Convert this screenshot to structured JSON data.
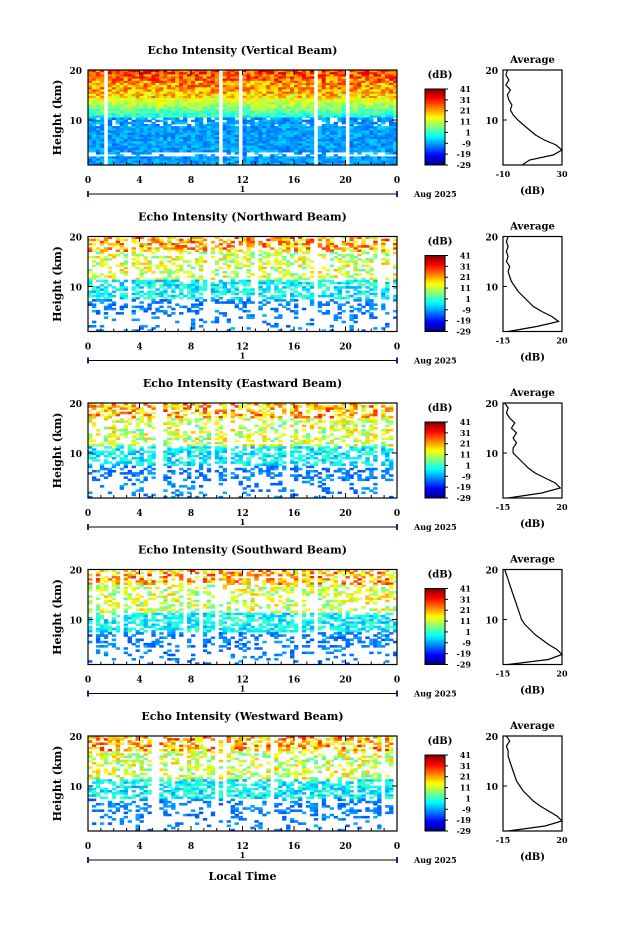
{
  "figure": {
    "xlabel": "Local Time",
    "date_label": "Aug 2025",
    "day_marker": "1",
    "colorbar_unit": "(dB)",
    "colorbar_ticks": [
      "41",
      "31",
      "21",
      "11",
      "1",
      "-9",
      "-19",
      "-29"
    ],
    "colorbar_range": [
      -29,
      41
    ]
  },
  "chart_data": [
    {
      "type": "heatmap",
      "title": "Echo Intensity (Vertical Beam)",
      "ylabel": "Height (km)",
      "x_ticks": [
        "0",
        "4",
        "8",
        "12",
        "16",
        "20",
        "0"
      ],
      "xlim": [
        0,
        24
      ],
      "ylim": [
        1,
        20
      ],
      "y_ticks": [
        "20",
        "10"
      ],
      "colorbar_unit": "(dB)",
      "profile": {
        "title": "Average",
        "xlabel": "(dB)",
        "x_ticks": [
          "-10",
          "30"
        ],
        "xlim": [
          -10,
          30
        ],
        "y_ticks": [
          "20",
          "10"
        ],
        "points": [
          [
            3,
            1
          ],
          [
            8,
            2
          ],
          [
            24,
            3
          ],
          [
            30,
            4
          ],
          [
            26,
            5
          ],
          [
            18,
            6
          ],
          [
            12,
            7
          ],
          [
            8,
            8
          ],
          [
            4,
            9
          ],
          [
            0,
            10
          ],
          [
            -3,
            11
          ],
          [
            -5,
            12
          ],
          [
            -4,
            13
          ],
          [
            -6,
            14
          ],
          [
            -7,
            15
          ],
          [
            -5,
            16
          ],
          [
            -8,
            17
          ],
          [
            -6,
            18
          ],
          [
            -8,
            19
          ],
          [
            -7,
            20
          ]
        ]
      }
    },
    {
      "type": "heatmap",
      "title": "Echo Intensity (Northward Beam)",
      "ylabel": "Height (km)",
      "x_ticks": [
        "0",
        "4",
        "8",
        "12",
        "16",
        "20",
        "0"
      ],
      "xlim": [
        0,
        24
      ],
      "ylim": [
        1,
        20
      ],
      "y_ticks": [
        "20",
        "10"
      ],
      "colorbar_unit": "(dB)",
      "profile": {
        "title": "Average",
        "xlabel": "(dB)",
        "x_ticks": [
          "-15",
          "20"
        ],
        "xlim": [
          -15,
          20
        ],
        "y_ticks": [
          "20",
          "10"
        ],
        "points": [
          [
            -12,
            1
          ],
          [
            5,
            2
          ],
          [
            18,
            3
          ],
          [
            14,
            4
          ],
          [
            8,
            5
          ],
          [
            3,
            6
          ],
          [
            0,
            7
          ],
          [
            -3,
            8
          ],
          [
            -6,
            9
          ],
          [
            -8,
            10
          ],
          [
            -10,
            11
          ],
          [
            -11,
            12
          ],
          [
            -12,
            13
          ],
          [
            -11,
            14
          ],
          [
            -13,
            15
          ],
          [
            -12,
            16
          ],
          [
            -13,
            17
          ],
          [
            -12,
            18
          ],
          [
            -13,
            19
          ],
          [
            -12,
            20
          ]
        ]
      }
    },
    {
      "type": "heatmap",
      "title": "Echo Intensity (Eastward Beam)",
      "ylabel": "Height (km)",
      "x_ticks": [
        "0",
        "4",
        "8",
        "12",
        "16",
        "20",
        "0"
      ],
      "xlim": [
        0,
        24
      ],
      "ylim": [
        1,
        20
      ],
      "y_ticks": [
        "20",
        "10"
      ],
      "colorbar_unit": "(dB)",
      "profile": {
        "title": "Average",
        "xlabel": "(dB)",
        "x_ticks": [
          "-15",
          "20"
        ],
        "xlim": [
          -15,
          20
        ],
        "y_ticks": [
          "20",
          "10"
        ],
        "points": [
          [
            -12,
            1
          ],
          [
            8,
            2
          ],
          [
            19,
            3
          ],
          [
            16,
            4
          ],
          [
            10,
            5
          ],
          [
            4,
            6
          ],
          [
            0,
            7
          ],
          [
            -3,
            8
          ],
          [
            -6,
            9
          ],
          [
            -9,
            10
          ],
          [
            -9,
            11
          ],
          [
            -7,
            12
          ],
          [
            -9,
            13
          ],
          [
            -7,
            14
          ],
          [
            -10,
            15
          ],
          [
            -8,
            16
          ],
          [
            -11,
            17
          ],
          [
            -13,
            18
          ],
          [
            -12,
            19
          ],
          [
            -14,
            20
          ]
        ]
      }
    },
    {
      "type": "heatmap",
      "title": "Echo Intensity (Southward Beam)",
      "ylabel": "Height (km)",
      "x_ticks": [
        "0",
        "4",
        "8",
        "12",
        "16",
        "20",
        "0"
      ],
      "xlim": [
        0,
        24
      ],
      "ylim": [
        1,
        20
      ],
      "y_ticks": [
        "20",
        "10"
      ],
      "colorbar_unit": "(dB)",
      "profile": {
        "title": "Average",
        "xlabel": "(dB)",
        "x_ticks": [
          "-15",
          "20"
        ],
        "xlim": [
          -15,
          20
        ],
        "y_ticks": [
          "20",
          "10"
        ],
        "points": [
          [
            -12,
            1
          ],
          [
            12,
            2
          ],
          [
            20,
            3
          ],
          [
            17,
            4
          ],
          [
            12,
            5
          ],
          [
            8,
            6
          ],
          [
            4,
            7
          ],
          [
            1,
            8
          ],
          [
            -2,
            9
          ],
          [
            -4,
            10
          ],
          [
            -5,
            11
          ],
          [
            -6,
            12
          ],
          [
            -7,
            13
          ],
          [
            -8,
            14
          ],
          [
            -9,
            15
          ],
          [
            -10,
            16
          ],
          [
            -11,
            17
          ],
          [
            -12,
            18
          ],
          [
            -13,
            19
          ],
          [
            -14,
            20
          ]
        ]
      }
    },
    {
      "type": "heatmap",
      "title": "Echo Intensity (Westward Beam)",
      "ylabel": "Height (km)",
      "x_ticks": [
        "0",
        "4",
        "8",
        "12",
        "16",
        "20",
        "0"
      ],
      "xlim": [
        0,
        24
      ],
      "ylim": [
        1,
        20
      ],
      "y_ticks": [
        "20",
        "10"
      ],
      "colorbar_unit": "(dB)",
      "profile": {
        "title": "Average",
        "xlabel": "(dB)",
        "x_ticks": [
          "-15",
          "20"
        ],
        "xlim": [
          -15,
          20
        ],
        "y_ticks": [
          "20",
          "10"
        ],
        "points": [
          [
            -12,
            1
          ],
          [
            10,
            2
          ],
          [
            20,
            3
          ],
          [
            17,
            4
          ],
          [
            12,
            5
          ],
          [
            7,
            6
          ],
          [
            3,
            7
          ],
          [
            0,
            8
          ],
          [
            -3,
            9
          ],
          [
            -5,
            10
          ],
          [
            -7,
            11
          ],
          [
            -8,
            12
          ],
          [
            -9,
            13
          ],
          [
            -10,
            14
          ],
          [
            -11,
            15
          ],
          [
            -12,
            16
          ],
          [
            -12,
            17
          ],
          [
            -13,
            18
          ],
          [
            -11,
            19
          ],
          [
            -13,
            20
          ]
        ]
      }
    }
  ]
}
